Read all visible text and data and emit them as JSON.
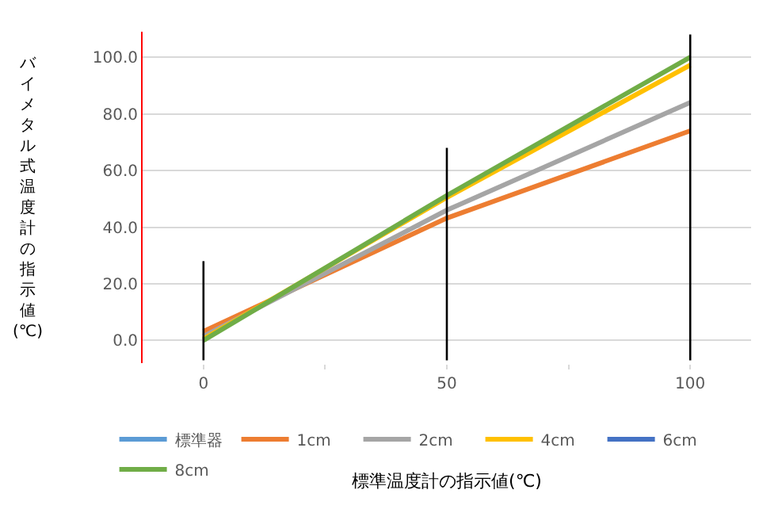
{
  "chart_data": {
    "type": "line",
    "xlabel": "標準温度計の指示値(℃)",
    "ylabel": "バイメタル式温度計の指示値(℃)",
    "x": [
      0,
      50,
      100
    ],
    "xlim": [
      -12.5,
      112.5
    ],
    "xticks": [
      0,
      {
        "value": 25,
        "label": null
      },
      50,
      {
        "value": 75,
        "label": null
      },
      100
    ],
    "ylim": [
      -8,
      109
    ],
    "yticks": [
      {
        "value": 0,
        "label": "0.0"
      },
      {
        "value": 20,
        "label": "20.0"
      },
      {
        "value": 40,
        "label": "40.0"
      },
      {
        "value": 60,
        "label": "60.0"
      },
      {
        "value": 80,
        "label": "80.0"
      },
      {
        "value": 100,
        "label": "100.0"
      }
    ],
    "grid": "y",
    "legend": "bottom",
    "marker": "none",
    "line_style": "solid",
    "series": [
      {
        "name": "標準器",
        "color": "#5b9bd5",
        "values": [
          null,
          null,
          null
        ]
      },
      {
        "name": "1cm",
        "color": "#ed7d31",
        "values": [
          3.2,
          43.2,
          74
        ]
      },
      {
        "name": "2cm",
        "color": "#a5a5a5",
        "values": [
          1.5,
          46,
          84
        ]
      },
      {
        "name": "4cm",
        "color": "#ffc000",
        "values": [
          0.5,
          50.5,
          97.2
        ]
      },
      {
        "name": "6cm",
        "color": "#4472c4",
        "values": [
          null,
          null,
          null
        ]
      },
      {
        "name": "8cm",
        "color": "#70ad47",
        "values": [
          0,
          51.2,
          100
        ]
      },
      {
        "color": "#000000",
        "x": [
          0,
          0
        ],
        "values": [
          -7,
          28
        ]
      },
      {
        "color": "#000000",
        "x": [
          50,
          50
        ],
        "values": [
          -7,
          68
        ]
      },
      {
        "color": "#000000",
        "x": [
          100,
          100
        ],
        "values": [
          -7,
          108
        ]
      }
    ]
  }
}
